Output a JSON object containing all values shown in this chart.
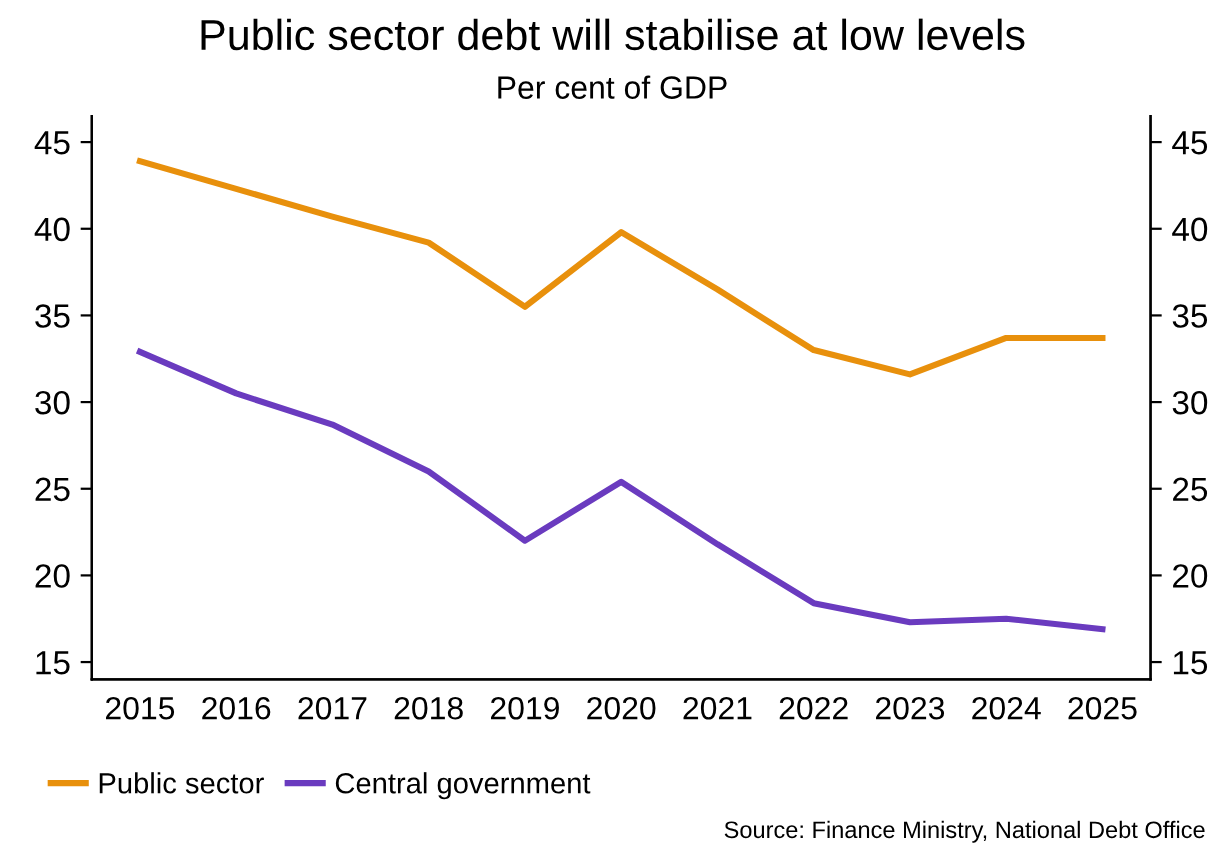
{
  "chart_data": {
    "type": "line",
    "title": "Public sector debt will stabilise at low levels",
    "subtitle": "Per cent of GDP",
    "categories": [
      "2015",
      "2016",
      "2017",
      "2018",
      "2019",
      "2020",
      "2021",
      "2022",
      "2023",
      "2024",
      "2025"
    ],
    "series": [
      {
        "name": "Public sector",
        "color": "#e8900c",
        "values": [
          43.9,
          42.3,
          40.7,
          39.2,
          35.5,
          39.8,
          36.5,
          33.0,
          31.6,
          33.7,
          33.7
        ]
      },
      {
        "name": "Central government",
        "color": "#6a3bbf",
        "values": [
          32.9,
          30.5,
          28.7,
          26.0,
          22.0,
          25.4,
          21.8,
          18.4,
          17.3,
          17.5,
          16.9
        ]
      }
    ],
    "ylim": [
      14,
      46.5
    ],
    "yticks": [
      15,
      20,
      25,
      30,
      35,
      40,
      45
    ],
    "y2lim": [
      14,
      46.5
    ],
    "y2ticks": [
      15,
      20,
      25,
      30,
      35,
      40,
      45
    ],
    "grid": false,
    "legend": "bottom left",
    "marker": "none",
    "line_style": "solid",
    "annotations": [
      "Source: Finance Ministry, National Debt Office"
    ]
  }
}
